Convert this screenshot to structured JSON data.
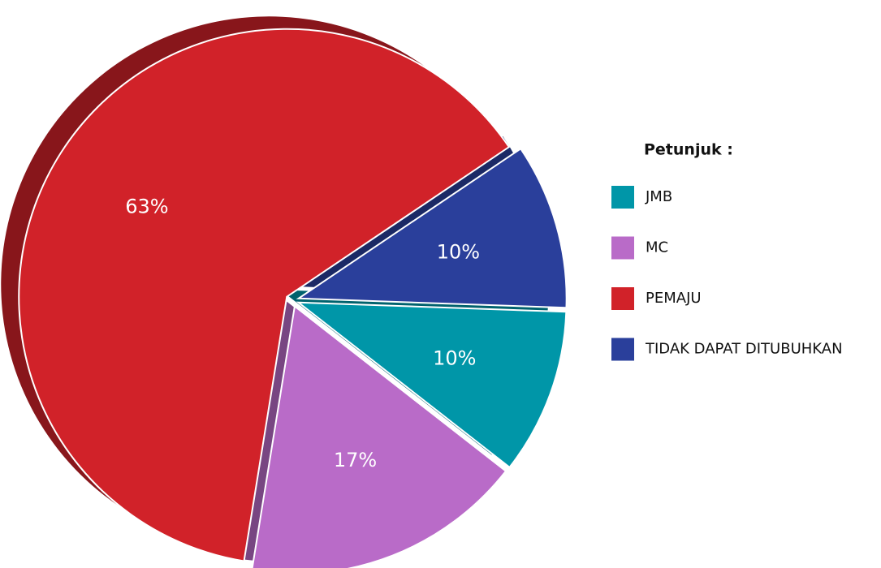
{
  "chart_data": {
    "type": "pie",
    "categories": [
      "JMB",
      "MC",
      "PEMAJU",
      "TIDAK DAPAT DITUBUHKAN"
    ],
    "values": [
      10,
      17,
      63,
      10
    ],
    "value_labels": [
      "10%",
      "17%",
      "63%",
      "10%"
    ],
    "colors": [
      "#0096a8",
      "#b96bc8",
      "#d12229",
      "#2a3f9b"
    ],
    "legend_title": "Petunjuk :",
    "legend": "right"
  }
}
